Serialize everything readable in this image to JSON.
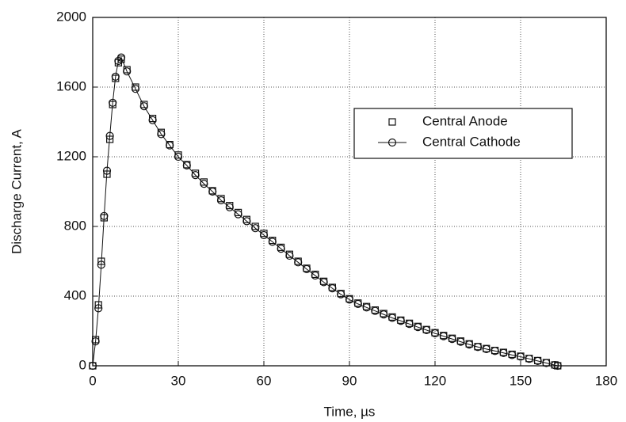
{
  "chart_data": {
    "type": "scatter",
    "x_label": "Time, µs",
    "y_label": "Discharge Current, A",
    "x": [
      0,
      1,
      2,
      3,
      4,
      5,
      6,
      7,
      8,
      9,
      10,
      12,
      15,
      18,
      21,
      24,
      27,
      30,
      33,
      36,
      39,
      42,
      45,
      48,
      51,
      54,
      57,
      60,
      63,
      66,
      69,
      72,
      75,
      78,
      81,
      84,
      87,
      90,
      93,
      96,
      99,
      102,
      105,
      108,
      111,
      114,
      117,
      120,
      123,
      126,
      129,
      132,
      135,
      138,
      141,
      144,
      147,
      150,
      153,
      156,
      159,
      162,
      163
    ],
    "series": [
      {
        "name": "Central Anode",
        "color": "#111111",
        "marker": "square",
        "values": [
          0,
          150,
          350,
          600,
          850,
          1100,
          1300,
          1500,
          1650,
          1740,
          1760,
          1700,
          1600,
          1500,
          1420,
          1340,
          1270,
          1210,
          1155,
          1105,
          1055,
          1005,
          960,
          920,
          880,
          840,
          800,
          760,
          720,
          680,
          640,
          600,
          560,
          525,
          485,
          450,
          415,
          385,
          360,
          340,
          320,
          300,
          280,
          262,
          244,
          226,
          208,
          190,
          174,
          158,
          142,
          126,
          110,
          99,
          88,
          77,
          66,
          55,
          42,
          30,
          18,
          5,
          0
        ]
      },
      {
        "name": "Central Cathode",
        "color": "#111111",
        "marker": "circle",
        "values": [
          0,
          140,
          330,
          580,
          860,
          1120,
          1320,
          1510,
          1660,
          1750,
          1770,
          1690,
          1590,
          1490,
          1410,
          1330,
          1265,
          1200,
          1150,
          1095,
          1045,
          1000,
          950,
          910,
          870,
          830,
          790,
          750,
          712,
          672,
          632,
          594,
          555,
          518,
          480,
          445,
          410,
          380,
          355,
          335,
          315,
          295,
          275,
          258,
          240,
          222,
          205,
          186,
          170,
          154,
          138,
          122,
          108,
          96,
          85,
          74,
          62,
          52,
          40,
          28,
          16,
          4,
          0
        ]
      }
    ],
    "xlim": [
      0,
      180
    ],
    "xticks": [
      0,
      30,
      60,
      90,
      120,
      150,
      180
    ],
    "ylim": [
      0,
      2000
    ],
    "yticks": [
      0,
      400,
      800,
      1200,
      1600,
      2000
    ],
    "grid": true
  }
}
